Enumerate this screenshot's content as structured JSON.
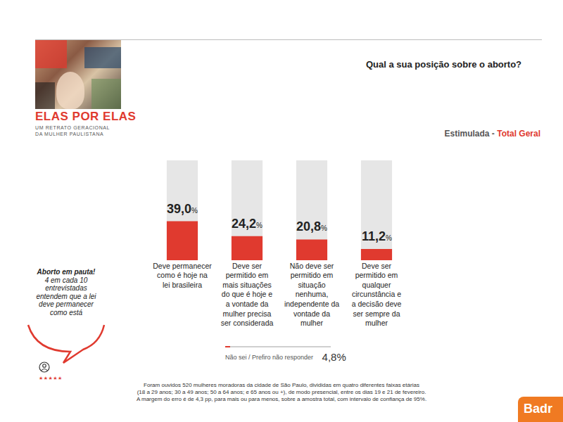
{
  "header": {
    "logo": {
      "title": "ELAS POR ELAS",
      "subtitle_lines": [
        "UM RETRATO GERACIONAL",
        "DA MULHER PAULISTANA"
      ]
    },
    "brand": "Badr"
  },
  "chart_data": {
    "type": "bar",
    "title": "Qual a sua posição sobre o aborto?",
    "subtitle": [
      "Estimulada -",
      "Total Geral"
    ],
    "categories": [
      "Deve permanecer como é hoje na lei brasileira",
      "Deve ser permitido em mais situações do que é hoje e a vontade da mulher precisa ser considerada",
      "Não deve ser permitido em situação nenhuma, independente da vontade da mulher",
      "Deve ser permitido em qualquer circunstância e a decisão deve ser sempre da mulher"
    ],
    "values": [
      39.0,
      24.2,
      20.8,
      11.2
    ],
    "value_labels": [
      "39,0%",
      "24,2%",
      "20,8%",
      "11,2%"
    ],
    "color": "#e03a2f",
    "ylim": [
      0,
      100
    ],
    "data_labels": true,
    "tick_labels": "x",
    "grid": false
  },
  "non_response": {
    "label": "Não sei / Prefiro não responder",
    "value": 4.8,
    "value_label": "4,8%"
  },
  "callout": {
    "heading": "Aborto em pauta!",
    "text": "4 em cada 10 entrevistadas entendem que a lei deve permanecer como está",
    "rating": "★★★★★"
  },
  "footnote": [
    "Foram ouvidos 520 mulheres moradoras da cidade de São Paulo, divididas em quatro diferentes faixas etárias",
    "(18 a 29 anos; 30 a 49 anos; 50 a 64 anos; e 65 anos ou +), de modo presencial, entre os dias 19 e 21 de fevereiro.",
    "A margem do erro é de 4,3 pp, para mais ou para menos, sobre a amostra total, com intervalo de confiança de 95%."
  ]
}
